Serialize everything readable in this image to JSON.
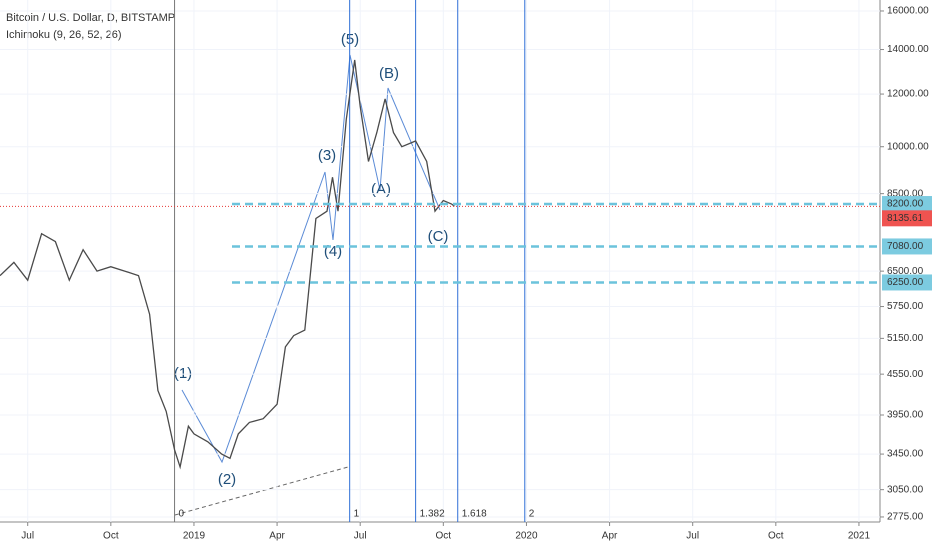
{
  "chart_data": {
    "type": "line",
    "title": "Bitcoin / U.S. Dollar, D, BITSTAMP",
    "indicator": "Ichimoku (9, 26, 52, 26)",
    "log_scale": true,
    "color": "#4a4a4a",
    "x": [
      -1,
      -0.5,
      0,
      0.5,
      1,
      1.5,
      2,
      2.5,
      3,
      3.5,
      4,
      4.4,
      4.7,
      5,
      5.3,
      5.5,
      5.8,
      6,
      6.5,
      7,
      7.3,
      7.6,
      8,
      8.5,
      9,
      9.3,
      9.6,
      10,
      10.4,
      10.8,
      11,
      11.2,
      11.5,
      11.8,
      12,
      12.3,
      12.6,
      12.9,
      13.2,
      13.5,
      14,
      14.4,
      14.7,
      15,
      15.3,
      15.4
    ],
    "values": [
      6400,
      6700,
      6300,
      7400,
      7200,
      6300,
      7000,
      6500,
      6600,
      6500,
      6400,
      5600,
      4300,
      4000,
      3500,
      3300,
      3800,
      3700,
      3600,
      3450,
      3400,
      3700,
      3850,
      3900,
      4100,
      5000,
      5200,
      5300,
      7800,
      8000,
      9000,
      8000,
      11000,
      13500,
      11500,
      9500,
      10500,
      11800,
      10500,
      10000,
      10200,
      9500,
      8000,
      8300,
      8200,
      8135.61
    ],
    "xlim": [
      -1,
      30.76
    ],
    "xticks": [
      {
        "value": 0,
        "label": "Jul"
      },
      {
        "value": 3,
        "label": "Oct"
      },
      {
        "value": 6,
        "label": "2019"
      },
      {
        "value": 9,
        "label": "Apr"
      },
      {
        "value": 12,
        "label": "Jul"
      },
      {
        "value": 15,
        "label": "Oct"
      },
      {
        "value": 18,
        "label": "2020"
      },
      {
        "value": 21,
        "label": "Apr"
      },
      {
        "value": 24,
        "label": "Jul"
      },
      {
        "value": 27,
        "label": "Oct"
      },
      {
        "value": 30,
        "label": "2021"
      }
    ],
    "ylim": [
      2727,
      16620
    ],
    "yticks": [
      {
        "value": 16000,
        "label": "16000.00"
      },
      {
        "value": 14000,
        "label": "14000.00"
      },
      {
        "value": 12000,
        "label": "12000.00"
      },
      {
        "value": 10000,
        "label": "10000.00"
      },
      {
        "value": 8500,
        "label": "8500.00"
      },
      {
        "value": 6500,
        "label": "6500.00"
      },
      {
        "value": 5750,
        "label": "5750.00"
      },
      {
        "value": 5150,
        "label": "5150.00"
      },
      {
        "value": 4550,
        "label": "4550.00"
      },
      {
        "value": 3950,
        "label": "3950.00"
      },
      {
        "value": 3450,
        "label": "3450.00"
      },
      {
        "value": 3050,
        "label": "3050.00"
      },
      {
        "value": 2775,
        "label": "2775.00"
      }
    ],
    "levels": [
      {
        "value": 8200,
        "label": "8200.00"
      },
      {
        "value": 7080,
        "label": "7080.00"
      },
      {
        "value": 6250,
        "label": "6250.00"
      }
    ],
    "last_price": {
      "value": 8135.61,
      "label": "8135.61"
    },
    "fib": {
      "x": [
        5.3,
        11.62,
        14.0,
        15.52,
        17.94
      ],
      "values": [
        0,
        1,
        1.382,
        1.618,
        2
      ]
    },
    "annotations": [
      "(1)",
      "(2)",
      "(3)",
      "(4)",
      "(5)",
      "(A)",
      "(B)",
      "(C)"
    ]
  }
}
